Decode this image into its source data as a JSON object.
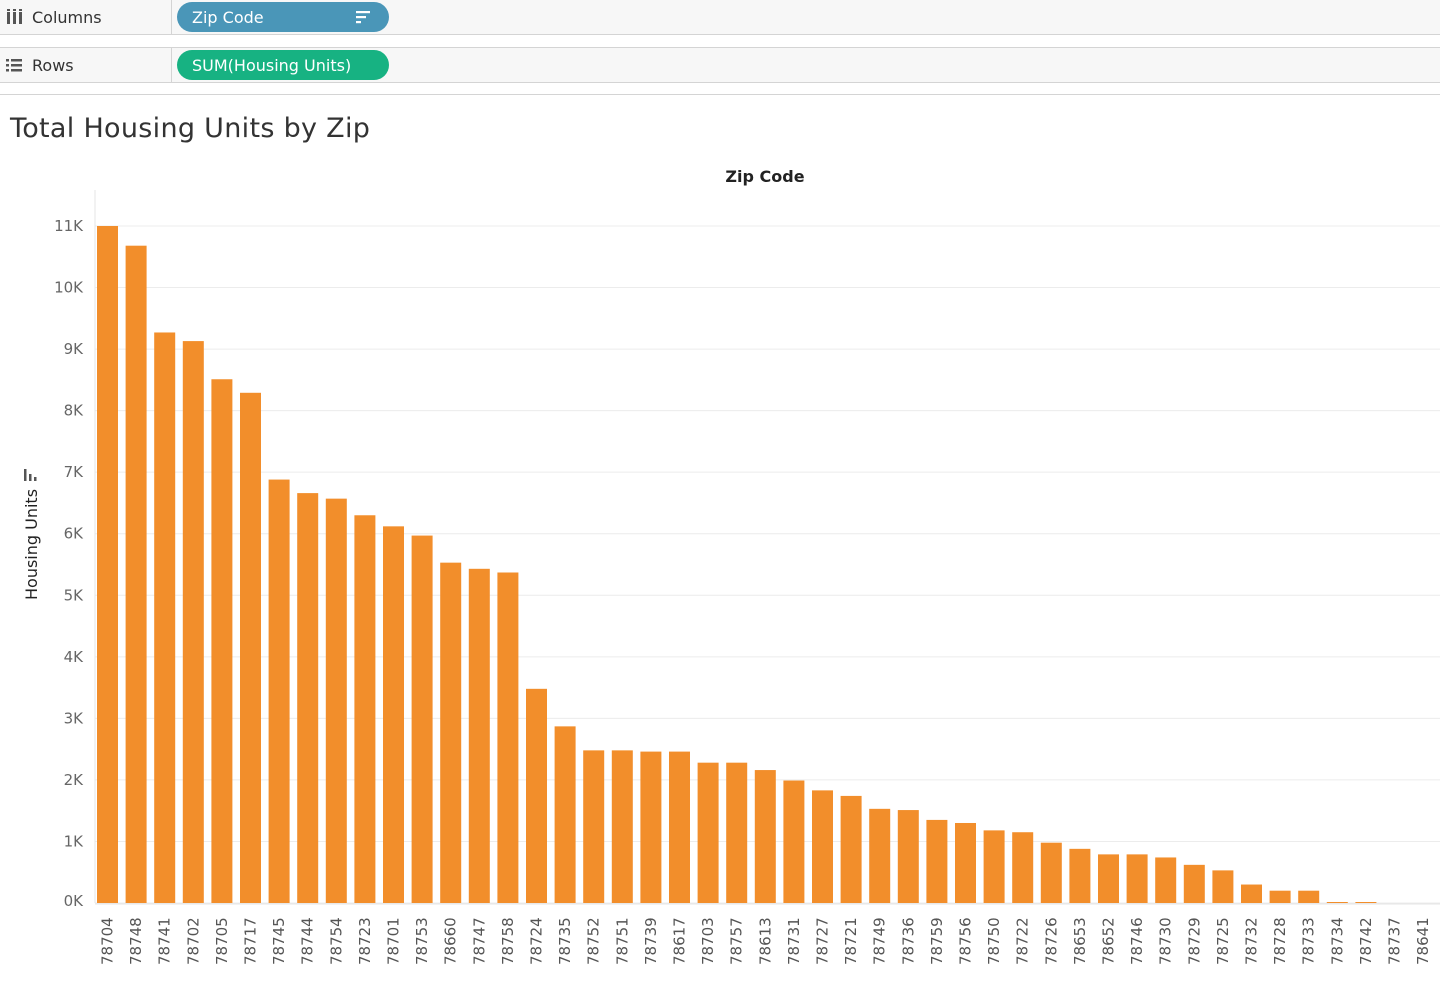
{
  "shelves": {
    "columns": {
      "label": "Columns",
      "pill": "Zip Code",
      "pill_color": "#4a96b8"
    },
    "rows": {
      "label": "Rows",
      "pill": "SUM(Housing Units)",
      "pill_color": "#17b282"
    }
  },
  "sheet": {
    "title": "Total Housing Units by Zip",
    "x_header": "Zip Code",
    "y_title": "Housing Units"
  },
  "chart_data": {
    "type": "bar",
    "title": "Total Housing Units by Zip",
    "xlabel": "Zip Code",
    "ylabel": "Housing Units",
    "ylim": [
      0,
      11000
    ],
    "yticks": [
      0,
      1000,
      2000,
      3000,
      4000,
      5000,
      6000,
      7000,
      8000,
      9000,
      10000,
      11000
    ],
    "ytick_labels": [
      "0K",
      "1K",
      "2K",
      "3K",
      "4K",
      "5K",
      "6K",
      "7K",
      "8K",
      "9K",
      "10K",
      "11K"
    ],
    "bar_color": "#f28e2b",
    "grid": true,
    "categories": [
      "78704",
      "78748",
      "78741",
      "78702",
      "78705",
      "78717",
      "78745",
      "78744",
      "78754",
      "78723",
      "78701",
      "78753",
      "78660",
      "78747",
      "78758",
      "78724",
      "78735",
      "78752",
      "78751",
      "78739",
      "78617",
      "78703",
      "78757",
      "78613",
      "78731",
      "78727",
      "78721",
      "78749",
      "78736",
      "78759",
      "78756",
      "78750",
      "78722",
      "78726",
      "78653",
      "78652",
      "78746",
      "78730",
      "78729",
      "78725",
      "78732",
      "78728",
      "78733",
      "78734",
      "78742",
      "78737",
      "78641"
    ],
    "values": [
      11000,
      10680,
      9270,
      9130,
      8510,
      8290,
      6880,
      6660,
      6570,
      6300,
      6120,
      5970,
      5530,
      5430,
      5370,
      3480,
      2870,
      2480,
      2480,
      2460,
      2460,
      2280,
      2280,
      2160,
      1990,
      1830,
      1740,
      1530,
      1510,
      1350,
      1300,
      1180,
      1150,
      980,
      880,
      790,
      790,
      740,
      620,
      530,
      300,
      200,
      200,
      10,
      10,
      0,
      0
    ]
  }
}
